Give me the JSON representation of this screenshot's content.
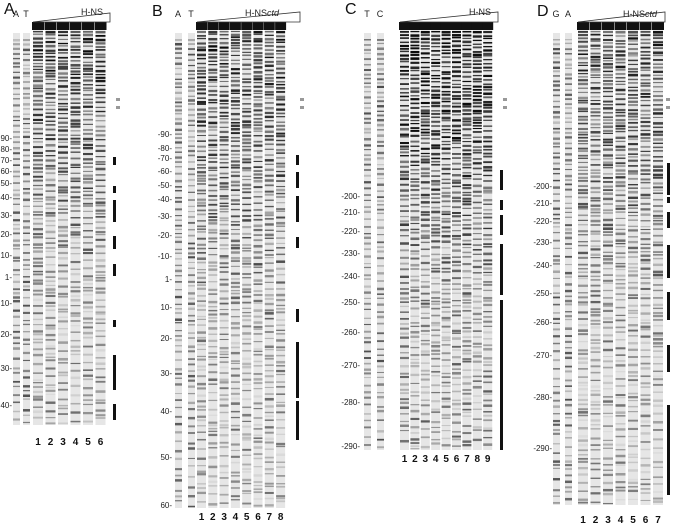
{
  "panels": [
    {
      "letter": "A",
      "markers": [
        "A",
        "T"
      ],
      "protein": "H-NS",
      "ladder": [
        "90-",
        "80-",
        "70-",
        "60-",
        "50-",
        "40-",
        "30-",
        "20-",
        "10-",
        "1-",
        "10-",
        "20-",
        "30-",
        "40-"
      ],
      "lanes": [
        "1",
        "2",
        "3",
        "4",
        "5",
        "6"
      ]
    },
    {
      "letter": "B",
      "markers": [
        "A",
        "T"
      ],
      "protein": "H-NS",
      "protein_italic": "ctd",
      "ladder": [
        "-90-",
        "-80-",
        "-70-",
        "-60-",
        "-50-",
        "-40-",
        "-30-",
        "-20-",
        "-10-",
        "1-",
        "10-",
        "20-",
        "30-",
        "40-",
        "50-",
        "60-"
      ],
      "lanes": [
        "1",
        "2",
        "3",
        "4",
        "5",
        "6",
        "7",
        "8"
      ]
    },
    {
      "letter": "C",
      "markers": [
        "T",
        "C"
      ],
      "protein": "H-NS",
      "ladder": [
        "-200-",
        "-210-",
        "-220-",
        "-230-",
        "-240-",
        "-250-",
        "-260-",
        "-270-",
        "-280-",
        "-290-"
      ],
      "lanes": [
        "1",
        "2",
        "3",
        "4",
        "5",
        "6",
        "7",
        "8",
        "9"
      ]
    },
    {
      "letter": "D",
      "markers": [
        "G",
        "A"
      ],
      "protein": "H-NS",
      "protein_italic": "ctd",
      "ladder": [
        "-200-",
        "-210-",
        "-220-",
        "-230-",
        "-240-",
        "-250-",
        "-260-",
        "-270-",
        "-280-",
        "-290-"
      ],
      "lanes": [
        "1",
        "2",
        "3",
        "4",
        "5",
        "6",
        "7"
      ]
    }
  ]
}
